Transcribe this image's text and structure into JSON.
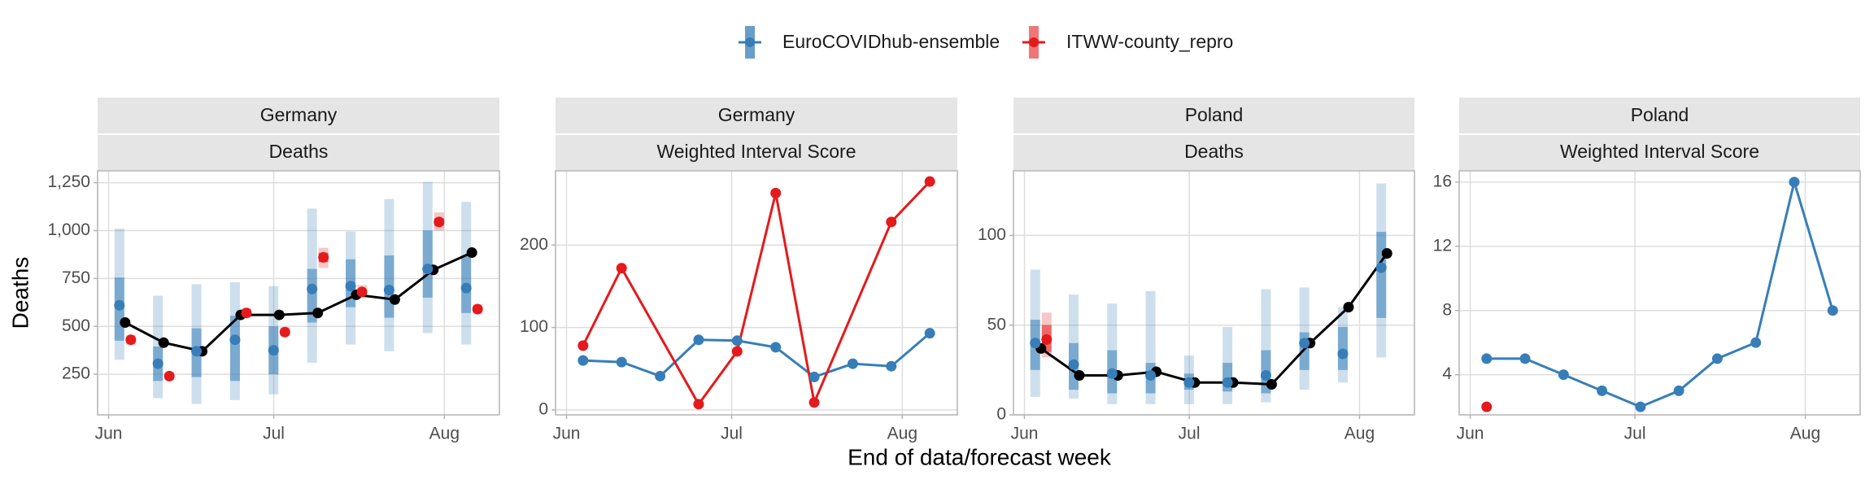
{
  "chart_data": [
    {
      "type": "forecast",
      "location": "Germany",
      "target": "Deaths",
      "y_label": "Deaths",
      "x": [
        3,
        10,
        17,
        24,
        31,
        38,
        45,
        52,
        59,
        66
      ],
      "xlim": [
        -2,
        71
      ],
      "xticks": [
        {
          "value": 0,
          "label": "Jun"
        },
        {
          "value": 30,
          "label": "Jul"
        },
        {
          "value": 61,
          "label": "Aug"
        }
      ],
      "ylim": [
        38,
        1312
      ],
      "yticks": [
        250,
        500,
        750,
        {
          "value": 1000,
          "label": "1,000"
        },
        {
          "value": 1250,
          "label": "1,250"
        }
      ],
      "series": [
        {
          "color": "#000000",
          "values": [
            520,
            415,
            370,
            560,
            560,
            570,
            665,
            640,
            795,
            885
          ]
        },
        {
          "name": "EuroCOVIDhub-ensemble",
          "color": "#377eb8",
          "values": [
            610,
            305,
            370,
            430,
            375,
            695,
            710,
            690,
            800,
            700
          ],
          "lower_95": [
            325,
            125,
            95,
            115,
            145,
            310,
            405,
            370,
            465,
            405
          ],
          "upper_95": [
            1010,
            660,
            720,
            730,
            710,
            1115,
            995,
            1165,
            1255,
            1150
          ],
          "lower_50": [
            425,
            215,
            235,
            215,
            250,
            520,
            600,
            545,
            650,
            570
          ],
          "upper_50": [
            755,
            395,
            490,
            555,
            500,
            800,
            850,
            870,
            1000,
            870
          ]
        },
        {
          "name": "ITWW-county_repro",
          "color": "#e41a1c",
          "x": [
            3,
            10,
            24,
            31,
            38,
            45,
            59,
            66
          ],
          "values": [
            430,
            240,
            570,
            470,
            860,
            680,
            1045,
            590
          ],
          "lower_95": [
            405,
            220,
            545,
            450,
            805,
            650,
            1000,
            565
          ],
          "upper_95": [
            455,
            260,
            595,
            495,
            910,
            715,
            1095,
            615
          ],
          "lower_50": [
            420,
            232,
            560,
            462,
            835,
            668,
            1025,
            580
          ],
          "upper_50": [
            440,
            248,
            580,
            480,
            885,
            695,
            1065,
            600
          ]
        }
      ]
    },
    {
      "type": "line",
      "location": "Germany",
      "target": "Weighted Interval Score",
      "x": [
        3,
        10,
        17,
        24,
        31,
        38,
        45,
        52,
        59,
        66
      ],
      "xlim": [
        -2,
        71
      ],
      "xticks": [
        {
          "value": 0,
          "label": "Jun"
        },
        {
          "value": 30,
          "label": "Jul"
        },
        {
          "value": 61,
          "label": "Aug"
        }
      ],
      "ylim": [
        -6,
        290
      ],
      "yticks": [
        0,
        100,
        200
      ],
      "series": [
        {
          "name": "EuroCOVIDhub-ensemble",
          "color": "#377eb8",
          "values": [
            60,
            58,
            41,
            85,
            84,
            76,
            40,
            56,
            53,
            93
          ]
        },
        {
          "name": "ITWW-county_repro",
          "color": "#e41a1c",
          "x": [
            3,
            10,
            24,
            31,
            38,
            45,
            59,
            66
          ],
          "values": [
            78,
            172,
            7,
            71,
            263,
            9,
            228,
            277
          ]
        }
      ]
    },
    {
      "type": "forecast",
      "location": "Poland",
      "target": "Deaths",
      "x": [
        3,
        10,
        17,
        24,
        31,
        38,
        45,
        52,
        59,
        66
      ],
      "xlim": [
        -2,
        71
      ],
      "xticks": [
        {
          "value": 0,
          "label": "Jun"
        },
        {
          "value": 30,
          "label": "Jul"
        },
        {
          "value": 61,
          "label": "Aug"
        }
      ],
      "ylim": [
        0,
        136
      ],
      "yticks": [
        0,
        50,
        100
      ],
      "series": [
        {
          "color": "#000000",
          "values": [
            37,
            22,
            22,
            24,
            18,
            18,
            17,
            40,
            60,
            90
          ]
        },
        {
          "name": "EuroCOVIDhub-ensemble",
          "color": "#377eb8",
          "values": [
            40,
            28,
            23,
            22,
            18,
            18,
            22,
            40,
            34,
            82
          ],
          "lower_95": [
            10,
            9,
            6,
            6,
            6,
            6,
            7,
            14,
            18,
            32
          ],
          "upper_95": [
            81,
            67,
            62,
            69,
            33,
            49,
            70,
            71,
            60,
            129
          ],
          "lower_50": [
            25,
            14,
            12,
            12,
            14,
            13,
            12,
            25,
            25,
            54
          ],
          "upper_50": [
            53,
            40,
            36,
            29,
            23,
            29,
            36,
            46,
            49,
            102
          ]
        },
        {
          "name": "ITWW-county_repro",
          "color": "#e41a1c",
          "x": [
            3
          ],
          "values": [
            42
          ],
          "lower_95": [
            32
          ],
          "upper_95": [
            57
          ],
          "lower_50": [
            35
          ],
          "upper_50": [
            50
          ]
        }
      ]
    },
    {
      "type": "line",
      "location": "Poland",
      "target": "Weighted Interval Score",
      "x": [
        3,
        10,
        17,
        24,
        31,
        38,
        45,
        52,
        59,
        66
      ],
      "xlim": [
        -2,
        71
      ],
      "xticks": [
        {
          "value": 0,
          "label": "Jun"
        },
        {
          "value": 30,
          "label": "Jul"
        },
        {
          "value": 61,
          "label": "Aug"
        }
      ],
      "ylim": [
        1.5,
        16.7
      ],
      "yticks": [
        4,
        8,
        12,
        16
      ],
      "series": [
        {
          "name": "EuroCOVIDhub-ensemble",
          "color": "#377eb8",
          "values": [
            5,
            5,
            4,
            3,
            2,
            3,
            5,
            6,
            16,
            8
          ]
        },
        {
          "name": "ITWW-county_repro",
          "color": "#e41a1c",
          "x": [
            3
          ],
          "values": [
            2
          ]
        }
      ]
    }
  ],
  "x_label": "End of data/forecast week"
}
